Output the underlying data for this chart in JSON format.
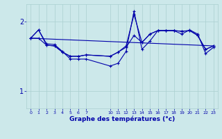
{
  "xlabel": "Graphe des températures (°c)",
  "background_color": "#cce8ea",
  "grid_color": "#aacfcf",
  "line_color": "#0000aa",
  "yticks": [
    1,
    2
  ],
  "xtick_vals": [
    0,
    1,
    2,
    3,
    4,
    5,
    6,
    7,
    10,
    11,
    12,
    13,
    14,
    15,
    16,
    17,
    18,
    19,
    20,
    21,
    22,
    23
  ],
  "xtick_labels": [
    "0",
    "1",
    "2",
    "3",
    "4",
    "5",
    "6",
    "7",
    "10",
    "11",
    "12",
    "13",
    "14",
    "15",
    "16",
    "17",
    "18",
    "19",
    "20",
    "21",
    "22",
    "23"
  ],
  "ylim": [
    0.75,
    2.25
  ],
  "xlim": [
    -0.5,
    23.5
  ],
  "curve1_x": [
    0,
    1,
    2,
    3,
    4,
    5,
    6,
    7,
    10,
    11,
    12,
    13,
    14,
    15,
    16,
    17,
    18,
    19,
    20,
    21,
    22,
    23
  ],
  "curve1_y": [
    1.76,
    1.88,
    1.66,
    1.65,
    1.56,
    1.5,
    1.5,
    1.52,
    1.5,
    1.56,
    1.65,
    2.1,
    1.7,
    1.82,
    1.87,
    1.87,
    1.87,
    1.86,
    1.87,
    1.8,
    1.6,
    1.65
  ],
  "curve2_x": [
    0,
    1,
    2,
    3,
    4,
    5,
    6,
    7,
    10,
    11,
    12,
    13,
    14,
    15,
    16,
    17,
    18,
    19,
    20,
    21,
    22,
    23
  ],
  "curve2_y": [
    1.76,
    1.76,
    1.66,
    1.65,
    1.56,
    1.5,
    1.5,
    1.52,
    1.5,
    1.56,
    1.63,
    1.8,
    1.7,
    1.82,
    1.87,
    1.87,
    1.87,
    1.86,
    1.87,
    1.8,
    1.6,
    1.65
  ],
  "line_x": [
    0,
    23
  ],
  "line_y": [
    1.76,
    1.65
  ],
  "curve3_x": [
    0,
    1,
    2,
    3,
    4,
    5,
    6,
    7,
    10,
    11,
    12,
    13,
    14,
    15,
    16,
    17,
    18,
    19,
    20,
    21,
    22,
    23
  ],
  "curve3_y": [
    1.76,
    1.88,
    1.68,
    1.67,
    1.57,
    1.46,
    1.46,
    1.46,
    1.36,
    1.4,
    1.57,
    2.15,
    1.6,
    1.72,
    1.87,
    1.87,
    1.87,
    1.82,
    1.88,
    1.82,
    1.54,
    1.63
  ]
}
